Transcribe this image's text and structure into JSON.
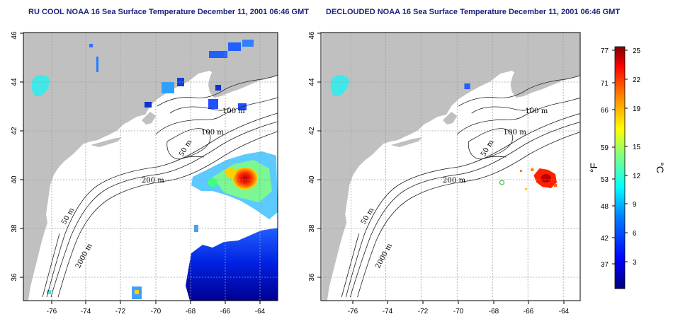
{
  "panels": [
    {
      "id": "left",
      "title": "RU COOL NOAA 16 Sea Surface Temperature December 11, 2001 06:46 GMT",
      "contour_labels": [
        "100 m",
        "100 m",
        "50 m",
        "200 m",
        "50 m",
        "2000 m"
      ]
    },
    {
      "id": "right",
      "title": "DECLOUDED NOAA 16 Sea Surface Temperature December 11, 2001 06:46 GMT",
      "contour_labels": [
        "100 m",
        "100 m",
        "50 m",
        "200 m",
        "50 m",
        "2000 m"
      ]
    }
  ],
  "axes": {
    "x_ticks": [
      "-76",
      "-74",
      "-72",
      "-70",
      "-68",
      "-66",
      "-64"
    ],
    "y_ticks": [
      "36",
      "38",
      "40",
      "42",
      "44",
      "46"
    ],
    "x_range": [
      -77,
      -63
    ],
    "y_range": [
      35,
      46
    ],
    "grid": true
  },
  "colorbar": {
    "f_ticks": [
      "77",
      "71",
      "66",
      "59",
      "53",
      "48",
      "42",
      "37"
    ],
    "c_ticks": [
      "25",
      "22",
      "19",
      "15",
      "12",
      "9",
      "6",
      "3"
    ],
    "f_unit": "°F",
    "c_unit": "°C",
    "colors": [
      "#00007f",
      "#0000ff",
      "#0080ff",
      "#00ffff",
      "#80ff80",
      "#ffff00",
      "#ff8000",
      "#ff0000",
      "#7f0000"
    ]
  },
  "land_color": "#c0c0c0",
  "ocean_color": "#ffffff"
}
